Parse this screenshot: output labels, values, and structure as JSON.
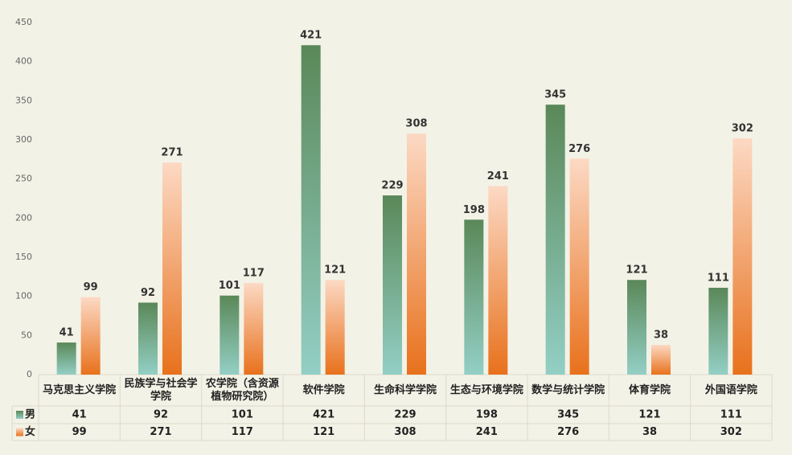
{
  "chart_data": {
    "type": "bar",
    "categories": [
      "马克思主义学院",
      "民族学与社会学学院",
      "农学院（含资源植物研究院）",
      "软件学院",
      "生命科学学院",
      "生态与环境学院",
      "数学与统计学院",
      "体育学院",
      "外国语学院"
    ],
    "series": [
      {
        "name": "男",
        "color": [
          "#5a8858",
          "#93cfc5"
        ],
        "values": [
          41,
          92,
          101,
          421,
          229,
          198,
          345,
          121,
          111
        ]
      },
      {
        "name": "女",
        "color": [
          "#fcd9c4",
          "#e8711c"
        ],
        "values": [
          99,
          271,
          117,
          121,
          308,
          241,
          276,
          38,
          302
        ]
      }
    ],
    "ylim": [
      0,
      450
    ],
    "yticks": [
      0,
      50,
      100,
      150,
      200,
      250,
      300,
      350,
      400,
      450
    ]
  }
}
